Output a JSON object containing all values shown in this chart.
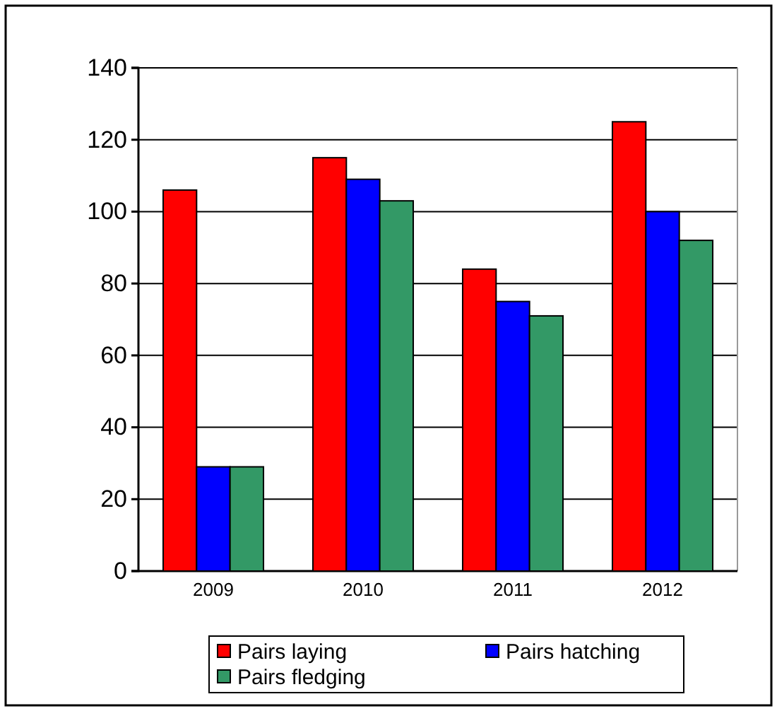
{
  "chart_data": {
    "type": "bar",
    "categories": [
      "2009",
      "2010",
      "2011",
      "2012"
    ],
    "series": [
      {
        "name": "Pairs laying",
        "color": "#ff0000",
        "values": [
          106,
          115,
          84,
          125
        ]
      },
      {
        "name": "Pairs hatching",
        "color": "#0000ff",
        "values": [
          29,
          109,
          75,
          100
        ]
      },
      {
        "name": "Pairs fledging",
        "color": "#339966",
        "values": [
          29,
          103,
          71,
          92
        ]
      }
    ],
    "ylim": [
      0,
      140
    ],
    "yticks": [
      0,
      20,
      40,
      60,
      80,
      100,
      120,
      140
    ],
    "grid": "y",
    "legend": "bottom"
  }
}
